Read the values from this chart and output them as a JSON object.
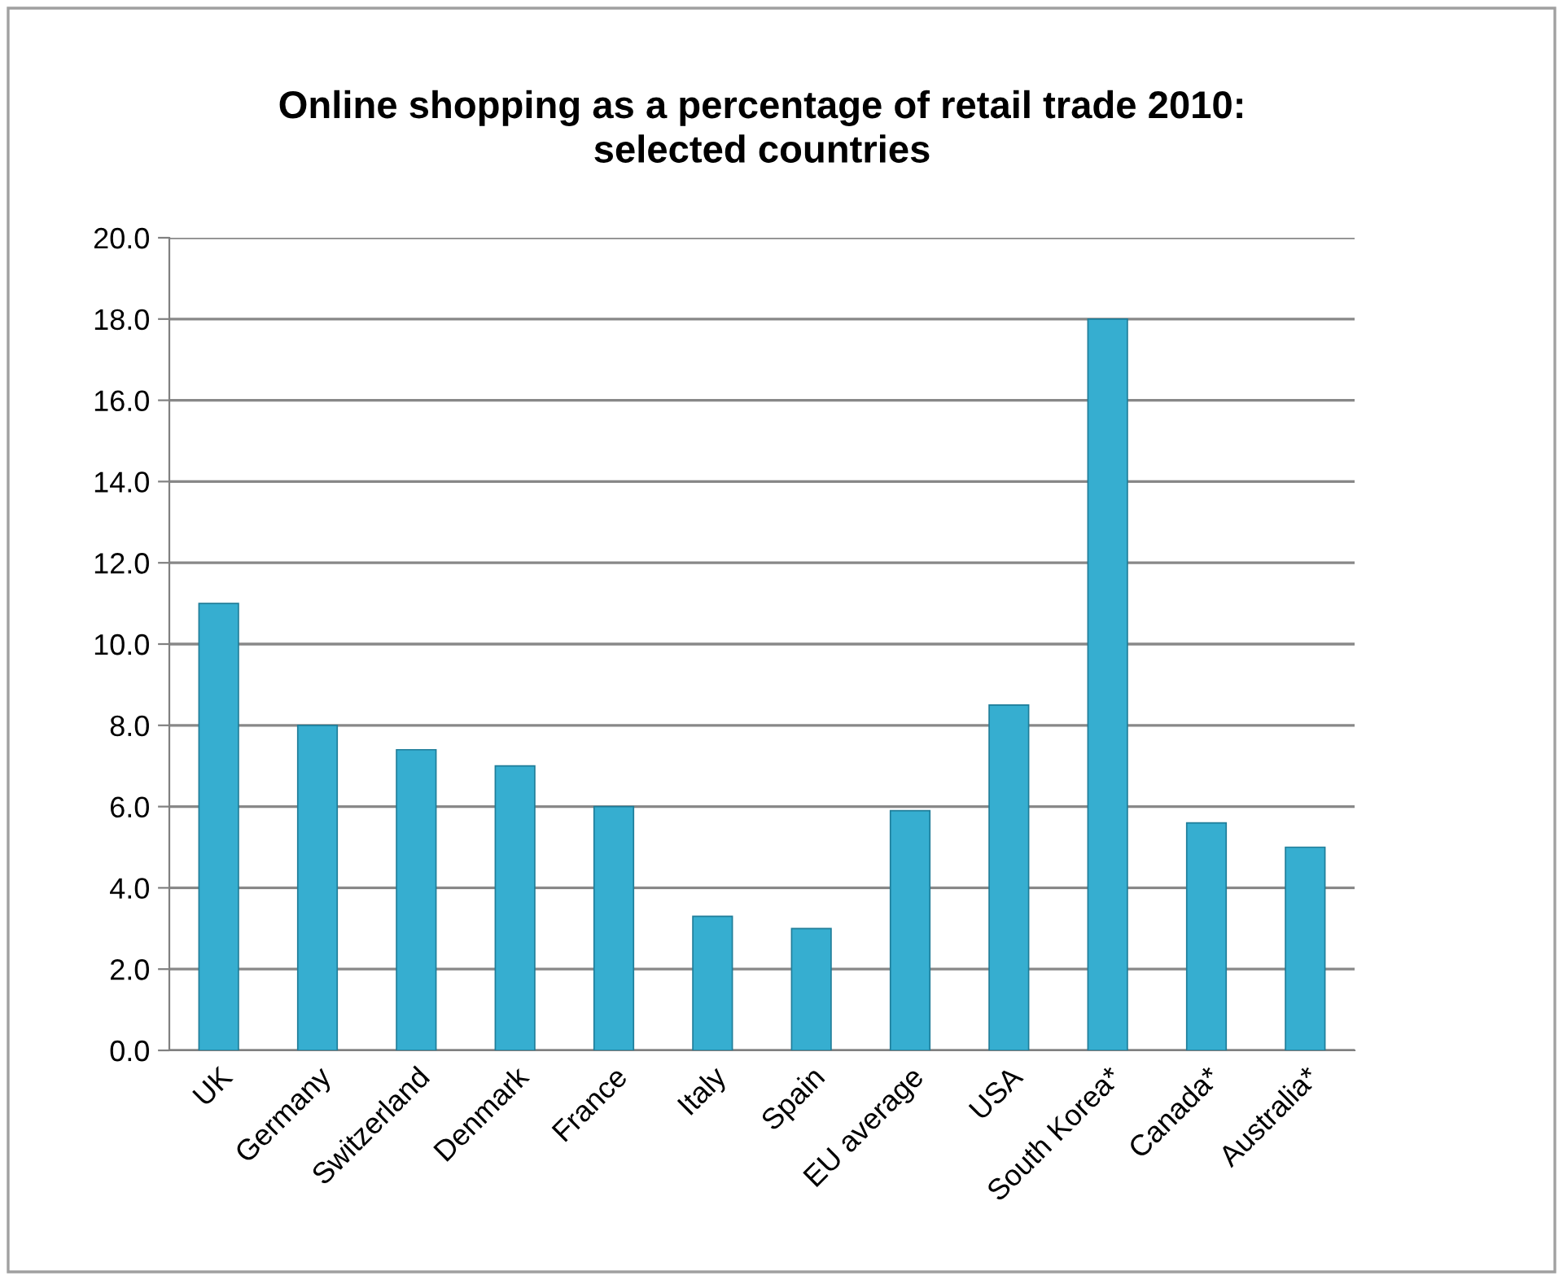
{
  "chart_data": {
    "type": "bar",
    "title": "Online shopping as a percentage of retail trade 2010:\nselected countries",
    "categories": [
      "UK",
      "Germany",
      "Switzerland",
      "Denmark",
      "France",
      "Italy",
      "Spain",
      "EU average",
      "USA",
      "South Korea*",
      "Canada*",
      "Australia*"
    ],
    "values": [
      11.0,
      8.0,
      7.4,
      7.0,
      6.0,
      3.3,
      3.0,
      5.9,
      8.5,
      18.0,
      5.6,
      5.0
    ],
    "color": "#36aed0",
    "ylim": [
      0,
      20
    ],
    "yticks": [
      {
        "value": 0,
        "label": "0.0"
      },
      {
        "value": 2,
        "label": "2.0"
      },
      {
        "value": 4,
        "label": "4.0"
      },
      {
        "value": 6,
        "label": "6.0"
      },
      {
        "value": 8,
        "label": "8.0"
      },
      {
        "value": 10,
        "label": "10.0"
      },
      {
        "value": 12,
        "label": "12.0"
      },
      {
        "value": 14,
        "label": "14.0"
      },
      {
        "value": 16,
        "label": "16.0"
      },
      {
        "value": 18,
        "label": "18.0"
      },
      {
        "value": 20,
        "label": "20.0"
      }
    ],
    "grid": "y"
  }
}
